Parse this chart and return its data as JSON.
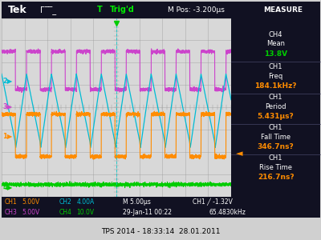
{
  "bg_color": "#d0d0d0",
  "screen_bg": "#d8d8d8",
  "header_bg": "#111122",
  "right_bg": "#111122",
  "bottom_bg": "#111122",
  "footer_text": "TPS 2014 - 18:33:14  28.01.2011",
  "ch1_color": "#ff8c00",
  "ch2_color": "#00bcd4",
  "ch3_color": "#cc44cc",
  "ch4_color": "#00cc00",
  "measure_items": [
    {
      "label": "CH4",
      "sublabel": "Mean",
      "value": "13.8V",
      "color": "#00cc00"
    },
    {
      "label": "CH1",
      "sublabel": "Freq",
      "value": "184.1kHz?",
      "color": "#ff8c00"
    },
    {
      "label": "CH1",
      "sublabel": "Period",
      "value": "5.431μs?",
      "color": "#ff8c00"
    },
    {
      "label": "CH1",
      "sublabel": "Fall Time",
      "value": "346.7ns?",
      "color": "#ff8c00"
    },
    {
      "label": "CH1",
      "sublabel": "Rise Time",
      "value": "216.7ns?",
      "color": "#ff8c00"
    }
  ],
  "grid_rows": 8,
  "grid_cols": 10,
  "period": 1.086
}
